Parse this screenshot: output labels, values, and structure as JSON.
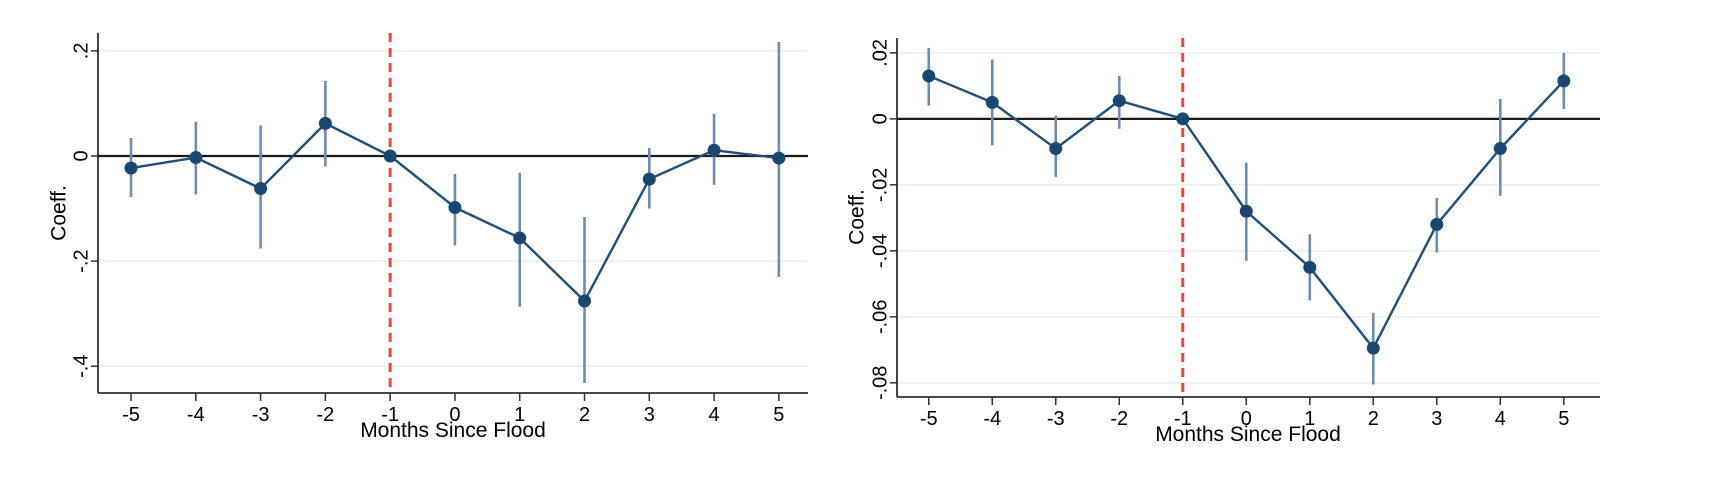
{
  "figure": {
    "background": "#ffffff",
    "panel_count": 2
  },
  "colors": {
    "marker": "#1a476f",
    "series_line": "#1f4e79",
    "ci_bar": "#6d8cb0",
    "reference_line": "#e8493a",
    "zero_line": "#1a1a1a",
    "gridline": "#e9eef5",
    "axis": "#303030",
    "text": "#000000"
  },
  "chart_data": [
    {
      "type": "line",
      "title": "",
      "xlabel": "Months Since Flood",
      "ylabel": "Coeff.",
      "x": [
        -5,
        -4,
        -3,
        -2,
        -1,
        0,
        1,
        2,
        3,
        4,
        5
      ],
      "x_tick_labels": [
        "-5",
        "-4",
        "-3",
        "-2",
        "-1",
        "0",
        "1",
        "2",
        "3",
        "4",
        "5"
      ],
      "y_ticks": [
        {
          "value": 0.2,
          "label": ".2"
        },
        {
          "value": 0,
          "label": "0"
        },
        {
          "value": -0.2,
          "label": "-.2"
        },
        {
          "value": -0.4,
          "label": "-.4"
        }
      ],
      "series": [
        {
          "name": "coefficient",
          "values": [
            -0.023,
            -0.003,
            -0.062,
            0.062,
            0,
            -0.098,
            -0.156,
            -0.276,
            -0.044,
            0.011,
            -0.004
          ],
          "ci_low": [
            -0.078,
            -0.073,
            -0.176,
            -0.02,
            0,
            -0.17,
            -0.287,
            -0.432,
            -0.1,
            -0.055,
            -0.23
          ],
          "ci_high": [
            0.034,
            0.065,
            0.058,
            0.143,
            0,
            -0.034,
            -0.032,
            -0.116,
            0.015,
            0.08,
            0.217
          ]
        }
      ],
      "reference_line_x": -1,
      "zero_line_y": 0,
      "xlim": [
        -5.51,
        5.45
      ],
      "ylim": [
        -0.451,
        0.234
      ],
      "grid": "horizontal",
      "legend": "none"
    },
    {
      "type": "line",
      "title": "",
      "xlabel": "Months Since Flood",
      "ylabel": "Coeff.",
      "x": [
        -5,
        -4,
        -3,
        -2,
        -1,
        0,
        1,
        2,
        3,
        4,
        5
      ],
      "x_tick_labels": [
        "-5",
        "-4",
        "-3",
        "-2",
        "-1",
        "0",
        "1",
        "2",
        "3",
        "4",
        "5"
      ],
      "y_ticks": [
        {
          "value": 0.02,
          "label": ".02"
        },
        {
          "value": 0,
          "label": "0"
        },
        {
          "value": -0.02,
          "label": "-.02"
        },
        {
          "value": -0.04,
          "label": "-.04"
        },
        {
          "value": -0.06,
          "label": "-.06"
        },
        {
          "value": -0.08,
          "label": "-.08"
        }
      ],
      "series": [
        {
          "name": "coefficient",
          "values": [
            0.013,
            0.005,
            -0.009,
            0.0055,
            0,
            -0.028,
            -0.045,
            -0.0695,
            -0.032,
            -0.009,
            0.0115
          ],
          "ci_low": [
            0.004,
            -0.008,
            -0.0176,
            -0.003,
            0,
            -0.043,
            -0.055,
            -0.0805,
            -0.0405,
            -0.0233,
            0.003
          ],
          "ci_high": [
            0.0215,
            0.018,
            0.001,
            0.013,
            0,
            -0.0133,
            -0.035,
            -0.0588,
            -0.024,
            0.006,
            0.02
          ]
        }
      ],
      "reference_line_x": -1,
      "zero_line_y": 0,
      "xlim": [
        -5.5,
        5.57
      ],
      "ylim": [
        -0.0843,
        0.0245
      ],
      "grid": "horizontal",
      "legend": "none"
    }
  ]
}
